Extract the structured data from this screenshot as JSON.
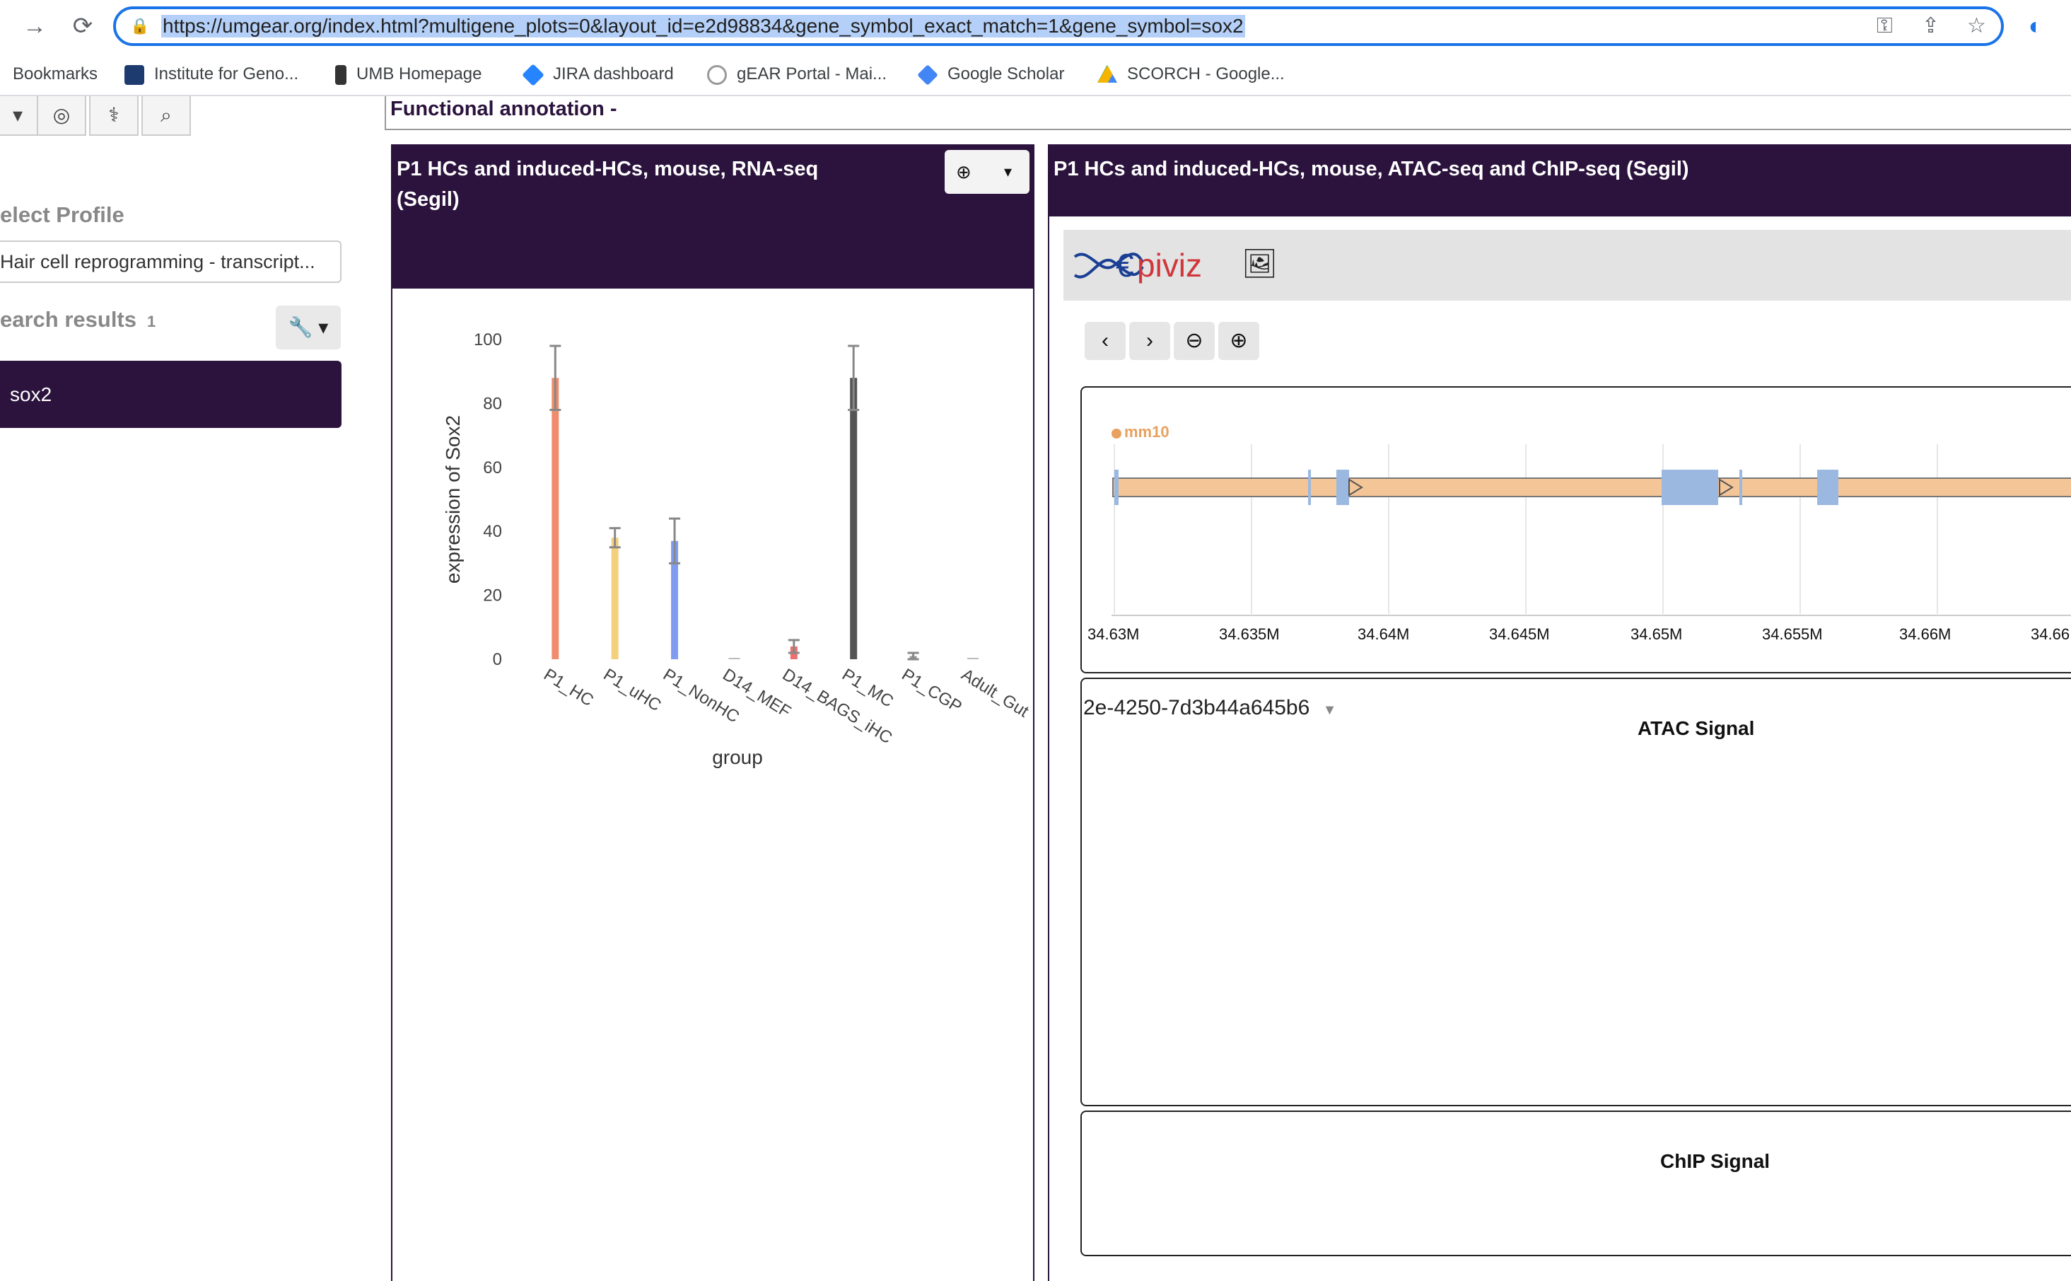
{
  "browser": {
    "url": "https://umgear.org/index.html?multigene_plots=0&layout_id=e2d98834&gene_symbol_exact_match=1&gene_symbol=sox2",
    "bookmarks": [
      {
        "label": "Bookmarks",
        "icon": "none"
      },
      {
        "label": "Institute for Geno...",
        "icon": "building-icon"
      },
      {
        "label": "UMB Homepage",
        "icon": "shield-icon"
      },
      {
        "label": "JIRA dashboard",
        "icon": "jira-icon"
      },
      {
        "label": "gEAR Portal - Mai...",
        "icon": "gear-icon"
      },
      {
        "label": "Google Scholar",
        "icon": "scholar-icon"
      },
      {
        "label": "SCORCH - Google...",
        "icon": "drive-icon"
      }
    ]
  },
  "sidebar": {
    "select_profile_label": "elect Profile",
    "profile_value": "Hair cell reprogramming - transcript...",
    "search_results_label": "earch results",
    "search_results_count": "1",
    "result_item": "sox2"
  },
  "main": {
    "functional_annotation": "Functional annotation -",
    "panel_rna_title_line1": "P1 HCs and induced-HCs, mouse, RNA-seq",
    "panel_rna_title_line2": "(Segil)",
    "panel_atac_title": "P1 HCs and induced-HCs, mouse, ATAC-seq and ChIP-seq (Segil)"
  },
  "chart_data": {
    "type": "bar",
    "categories": [
      "P1_HC",
      "P1_uHC",
      "P1_NonHC",
      "D14_MEF",
      "D14_BAGS_iHC",
      "P1_MC",
      "P1_CGP",
      "Adult_Gut"
    ],
    "values": [
      88,
      38,
      37,
      0,
      4,
      88,
      1,
      0
    ],
    "error": [
      10,
      3,
      7,
      0,
      2,
      10,
      1,
      0
    ],
    "colors": [
      "#f08c6e",
      "#f4cf7e",
      "#7f9cf0",
      "#bbbbbb",
      "#ee6f6f",
      "#555555",
      "#999999",
      "#bbbbbb"
    ],
    "xlabel": "group",
    "ylabel": "expression of Sox2",
    "ylim": [
      0,
      100
    ],
    "yticks": [
      0,
      20,
      40,
      60,
      80,
      100
    ]
  },
  "epiviz": {
    "logo": "Epiviz",
    "genome": "mm10",
    "axis_ticks": [
      "34.63M",
      "34.635M",
      "34.64M",
      "34.645M",
      "34.65M",
      "34.655M",
      "34.66M",
      "34.66"
    ],
    "track_id": "2e-4250-7d3b44a645b6",
    "atac_title": "ATAC Signal",
    "chip_title": "ChIP Signal"
  }
}
